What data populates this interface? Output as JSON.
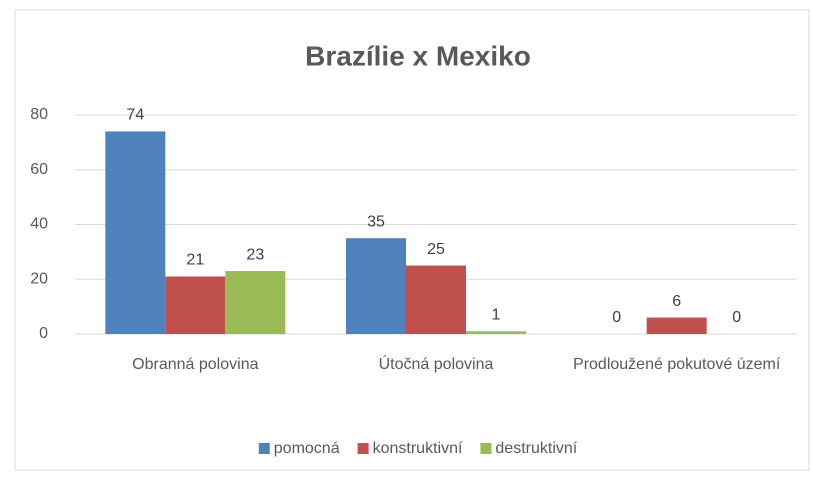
{
  "chart_data": {
    "type": "bar",
    "title": "Brazílie x Mexiko",
    "categories": [
      "Obranná polovina",
      "Útočná polovina",
      "Prodloužené pokutové území"
    ],
    "series": [
      {
        "name": "pomocná",
        "color": "#4f81bd",
        "values": [
          74,
          35,
          0
        ]
      },
      {
        "name": "konstruktivní",
        "color": "#c0504d",
        "values": [
          21,
          25,
          6
        ]
      },
      {
        "name": "destruktivní",
        "color": "#9bbb59",
        "values": [
          23,
          1,
          0
        ]
      }
    ],
    "ylim": [
      0,
      80
    ],
    "yticks": [
      0,
      20,
      40,
      60,
      80
    ],
    "grid": true,
    "legend": "bottom"
  }
}
